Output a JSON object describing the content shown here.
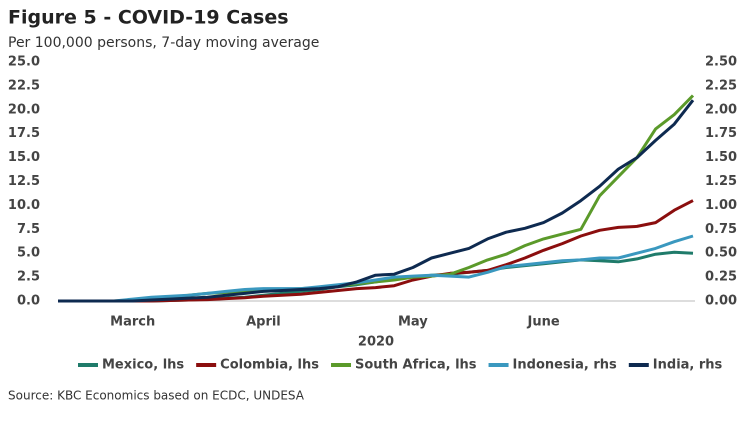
{
  "chart_data": {
    "type": "line",
    "title": "Figure 5 - COVID-19 Cases",
    "subtitle": "Per 100,000 persons, 7-day moving average",
    "x_label": "2020",
    "source": "Source: KBC Economics based on ECDC, UNDESA",
    "categories": [
      null,
      null,
      null,
      null,
      "March",
      null,
      null,
      null,
      null,
      null,
      null,
      "April",
      null,
      null,
      null,
      null,
      null,
      null,
      null,
      "May",
      null,
      null,
      null,
      null,
      null,
      null,
      "June",
      null,
      null,
      null,
      null,
      null,
      null,
      null,
      null
    ],
    "ylim": [
      0,
      25
    ],
    "yticks": [
      {
        "value": 0,
        "label": "0.0"
      },
      {
        "value": 2.5,
        "label": "2.5"
      },
      {
        "value": 5,
        "label": "5.0"
      },
      {
        "value": 7.5,
        "label": "7.5"
      },
      {
        "value": 10,
        "label": "10.0"
      },
      {
        "value": 12.5,
        "label": "12.5"
      },
      {
        "value": 15,
        "label": "15.0"
      },
      {
        "value": 17.5,
        "label": "17.5"
      },
      {
        "value": 20,
        "label": "20.0"
      },
      {
        "value": 22.5,
        "label": "22.5"
      },
      {
        "value": 25,
        "label": "25.0"
      }
    ],
    "y2lim": [
      0,
      2.5
    ],
    "y2ticks": [
      {
        "value": 0,
        "label": "0.00"
      },
      {
        "value": 0.25,
        "label": "0.25"
      },
      {
        "value": 0.5,
        "label": "0.50"
      },
      {
        "value": 0.75,
        "label": "0.75"
      },
      {
        "value": 1,
        "label": "1.00"
      },
      {
        "value": 1.25,
        "label": "1.25"
      },
      {
        "value": 1.5,
        "label": "1.50"
      },
      {
        "value": 1.75,
        "label": "1.75"
      },
      {
        "value": 2,
        "label": "2.00"
      },
      {
        "value": 2.25,
        "label": "2.25"
      },
      {
        "value": 2.5,
        "label": "2.50"
      }
    ],
    "series": [
      {
        "name": "Mexico, lhs",
        "color": "#1f7b6a",
        "values": [
          0,
          0,
          0,
          0,
          0,
          0,
          0.05,
          0.1,
          0.2,
          0.3,
          0.4,
          0.6,
          0.8,
          1,
          1.2,
          1.5,
          1.7,
          2,
          2.3,
          2.5,
          2.7,
          2.8,
          3,
          3.2,
          3.5,
          3.7,
          3.9,
          4.1,
          4.3,
          4.2,
          4.1,
          4.4,
          4.9,
          5.1,
          5
        ]
      },
      {
        "name": "Colombia, lhs",
        "color": "#8b0e0e",
        "values": [
          0,
          0,
          0,
          0,
          0,
          0,
          0.05,
          0.1,
          0.15,
          0.25,
          0.35,
          0.5,
          0.6,
          0.7,
          0.9,
          1.1,
          1.3,
          1.4,
          1.6,
          2.2,
          2.6,
          2.9,
          3,
          3.2,
          3.8,
          4.5,
          5.3,
          6,
          6.8,
          7.4,
          7.7,
          7.8,
          8.2,
          9.5,
          10.5
        ]
      },
      {
        "name": "South Africa, lhs",
        "color": "#5b9a2a",
        "values": [
          0,
          0,
          0,
          0,
          0.05,
          0.2,
          0.4,
          0.6,
          0.8,
          0.9,
          1,
          1.1,
          1.2,
          1.3,
          1.4,
          1.6,
          1.8,
          2,
          2.2,
          2.5,
          2.6,
          2.8,
          3.5,
          4.3,
          4.9,
          5.8,
          6.5,
          7,
          7.5,
          11,
          13,
          15,
          18,
          19.5,
          21.5
        ]
      },
      {
        "name": "Indonesia, rhs",
        "color": "#3a98bf",
        "axis": "y2",
        "values": [
          0,
          0,
          0,
          0,
          0.02,
          0.04,
          0.05,
          0.06,
          0.08,
          0.1,
          0.12,
          0.13,
          0.13,
          0.13,
          0.15,
          0.17,
          0.19,
          0.22,
          0.25,
          0.26,
          0.27,
          0.26,
          0.25,
          0.3,
          0.36,
          0.38,
          0.4,
          0.42,
          0.43,
          0.45,
          0.45,
          0.5,
          0.55,
          0.62,
          0.68
        ]
      },
      {
        "name": "India, rhs",
        "color": "#0e2a50",
        "axis": "y2",
        "values": [
          0,
          0,
          0,
          0,
          0,
          0.01,
          0.02,
          0.03,
          0.04,
          0.06,
          0.08,
          0.1,
          0.11,
          0.12,
          0.13,
          0.15,
          0.2,
          0.27,
          0.28,
          0.35,
          0.45,
          0.5,
          0.55,
          0.65,
          0.72,
          0.76,
          0.82,
          0.92,
          1.05,
          1.2,
          1.38,
          1.5,
          1.68,
          1.85,
          2.1
        ]
      }
    ]
  }
}
